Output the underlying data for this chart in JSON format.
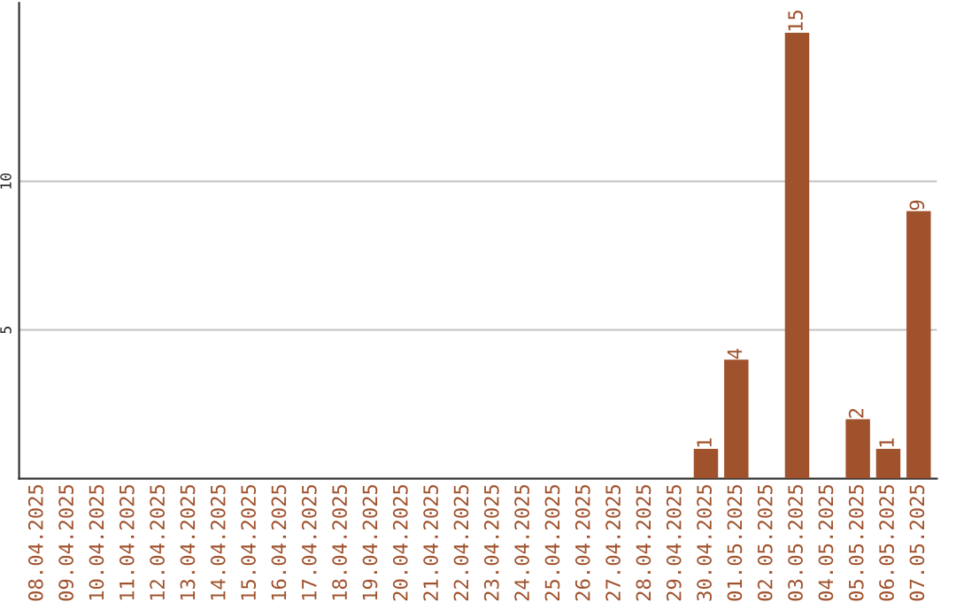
{
  "chart_data": {
    "type": "bar",
    "categories": [
      "08.04.2025",
      "09.04.2025",
      "10.04.2025",
      "11.04.2025",
      "12.04.2025",
      "13.04.2025",
      "14.04.2025",
      "15.04.2025",
      "16.04.2025",
      "17.04.2025",
      "18.04.2025",
      "19.04.2025",
      "20.04.2025",
      "21.04.2025",
      "22.04.2025",
      "23.04.2025",
      "24.04.2025",
      "25.04.2025",
      "26.04.2025",
      "27.04.2025",
      "28.04.2025",
      "29.04.2025",
      "30.04.2025",
      "01.05.2025",
      "02.05.2025",
      "03.05.2025",
      "04.05.2025",
      "05.05.2025",
      "06.05.2025",
      "07.05.2025"
    ],
    "values": [
      0,
      0,
      0,
      0,
      0,
      0,
      0,
      0,
      0,
      0,
      0,
      0,
      0,
      0,
      0,
      0,
      0,
      0,
      0,
      0,
      0,
      0,
      1,
      4,
      0,
      15,
      0,
      2,
      1,
      9
    ],
    "value_labels": [
      null,
      null,
      null,
      null,
      null,
      null,
      null,
      null,
      null,
      null,
      null,
      null,
      null,
      null,
      null,
      null,
      null,
      null,
      null,
      null,
      null,
      null,
      "1",
      "4",
      null,
      "15",
      null,
      "2",
      "1",
      "9"
    ],
    "color": "#a0522d",
    "ylim": [
      0,
      16
    ],
    "yticks": [
      5,
      10
    ],
    "grid": "y",
    "legend": false
  }
}
